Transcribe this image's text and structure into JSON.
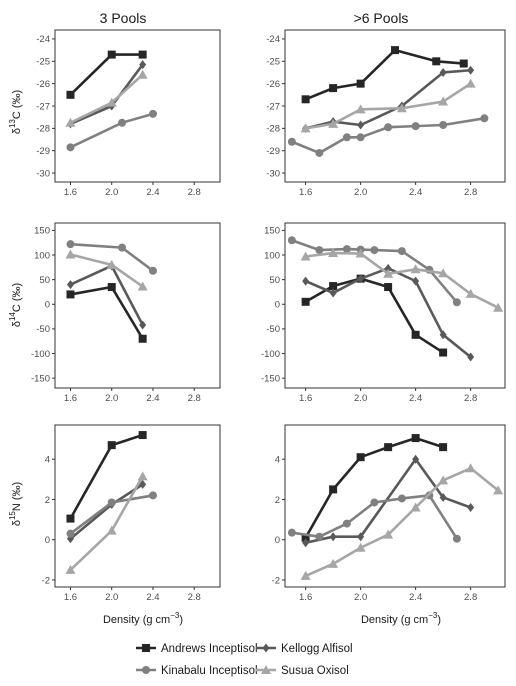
{
  "figure": {
    "columns": [
      "3 Pools",
      ">6 Pools"
    ],
    "xlabel": "Density (g cm",
    "xlabel_sup": "−3",
    "xlabel_end": ")",
    "rows": [
      {
        "ylabel_pre": "δ",
        "ylabel_sup": "13",
        "ylabel_post": "C (‰)"
      },
      {
        "ylabel_pre": "δ",
        "ylabel_sup": "14",
        "ylabel_post": "C (‰)"
      },
      {
        "ylabel_pre": "δ",
        "ylabel_sup": "15",
        "ylabel_post": "N (‰)"
      }
    ]
  },
  "legend": [
    {
      "label": "Andrews Inceptisol",
      "color": "#262626",
      "marker": "square"
    },
    {
      "label": "Kellogg Alfisol",
      "color": "#595959",
      "marker": "diamond"
    },
    {
      "label": "Kinabalu Inceptisol",
      "color": "#808080",
      "marker": "circle"
    },
    {
      "label": "Susua Oxisol",
      "color": "#a6a6a6",
      "marker": "triangle"
    }
  ],
  "chart_data": [
    {
      "type": "line",
      "panel": "d13C-3pools",
      "column": "3 Pools",
      "ylabel": "δ13C (‰)",
      "xlim": [
        1.45,
        3.05
      ],
      "xticks": [
        1.6,
        2.0,
        2.4,
        2.8
      ],
      "ylim": [
        -30.4,
        -23.6
      ],
      "yticks": [
        -30,
        -29,
        -28,
        -27,
        -26,
        -25,
        -24
      ],
      "series": [
        {
          "name": "Andrews Inceptisol",
          "x": [
            1.6,
            2.0,
            2.3
          ],
          "y": [
            -26.5,
            -24.7,
            -24.7
          ]
        },
        {
          "name": "Kellogg Alfisol",
          "x": [
            1.6,
            2.0,
            2.3
          ],
          "y": [
            -27.8,
            -27.0,
            -25.15
          ]
        },
        {
          "name": "Kinabalu Inceptisol",
          "x": [
            1.6,
            2.1,
            2.4
          ],
          "y": [
            -28.85,
            -27.75,
            -27.35
          ]
        },
        {
          "name": "Susua Oxisol",
          "x": [
            1.6,
            2.0,
            2.3
          ],
          "y": [
            -27.75,
            -26.85,
            -25.6
          ]
        }
      ]
    },
    {
      "type": "line",
      "panel": "d13C-6pools",
      "column": ">6 Pools",
      "ylabel": "δ13C (‰)",
      "xlim": [
        1.45,
        3.05
      ],
      "xticks": [
        1.6,
        2.0,
        2.4,
        2.8
      ],
      "ylim": [
        -30.4,
        -23.6
      ],
      "yticks": [
        -30,
        -29,
        -28,
        -27,
        -26,
        -25,
        -24
      ],
      "series": [
        {
          "name": "Andrews Inceptisol",
          "x": [
            1.6,
            1.8,
            2.0,
            2.25,
            2.55,
            2.75
          ],
          "y": [
            -26.7,
            -26.2,
            -26.0,
            -24.5,
            -25.0,
            -25.1
          ]
        },
        {
          "name": "Kellogg Alfisol",
          "x": [
            1.6,
            1.8,
            2.0,
            2.3,
            2.6,
            2.8
          ],
          "y": [
            -28.0,
            -27.7,
            -27.85,
            -27.0,
            -25.5,
            -25.4
          ]
        },
        {
          "name": "Kinabalu Inceptisol",
          "x": [
            1.5,
            1.7,
            1.9,
            2.0,
            2.2,
            2.4,
            2.6,
            2.9
          ],
          "y": [
            -28.6,
            -29.1,
            -28.4,
            -28.4,
            -27.95,
            -27.9,
            -27.85,
            -27.55
          ]
        },
        {
          "name": "Susua Oxisol",
          "x": [
            1.6,
            1.8,
            2.0,
            2.3,
            2.6,
            2.8
          ],
          "y": [
            -28.0,
            -27.8,
            -27.15,
            -27.1,
            -26.8,
            -26.0
          ]
        }
      ]
    },
    {
      "type": "line",
      "panel": "d14C-3pools",
      "column": "3 Pools",
      "ylabel": "δ14C (‰)",
      "xlim": [
        1.45,
        3.05
      ],
      "xticks": [
        1.6,
        2.0,
        2.4,
        2.8
      ],
      "ylim": [
        -170,
        165
      ],
      "yticks": [
        -150,
        -100,
        -50,
        0,
        50,
        100,
        150
      ],
      "series": [
        {
          "name": "Andrews Inceptisol",
          "x": [
            1.6,
            2.0,
            2.3
          ],
          "y": [
            20,
            35,
            -70
          ]
        },
        {
          "name": "Kellogg Alfisol",
          "x": [
            1.6,
            2.0,
            2.3
          ],
          "y": [
            40,
            78,
            -42
          ]
        },
        {
          "name": "Kinabalu Inceptisol",
          "x": [
            1.6,
            2.1,
            2.4
          ],
          "y": [
            122,
            115,
            68
          ]
        },
        {
          "name": "Susua Oxisol",
          "x": [
            1.6,
            2.0,
            2.3
          ],
          "y": [
            101,
            80,
            36
          ]
        }
      ]
    },
    {
      "type": "line",
      "panel": "d14C-6pools",
      "column": ">6 Pools",
      "ylabel": "δ14C (‰)",
      "xlim": [
        1.45,
        3.05
      ],
      "xticks": [
        1.6,
        2.0,
        2.4,
        2.8
      ],
      "ylim": [
        -170,
        165
      ],
      "yticks": [
        -150,
        -100,
        -50,
        0,
        50,
        100,
        150
      ],
      "series": [
        {
          "name": "Andrews Inceptisol",
          "x": [
            1.6,
            1.8,
            2.0,
            2.2,
            2.4,
            2.6
          ],
          "y": [
            5,
            37,
            52,
            35,
            -62,
            -98
          ]
        },
        {
          "name": "Kellogg Alfisol",
          "x": [
            1.6,
            1.8,
            2.0,
            2.2,
            2.4,
            2.6,
            2.8
          ],
          "y": [
            47,
            23,
            52,
            73,
            47,
            -62,
            -107
          ]
        },
        {
          "name": "Kinabalu Inceptisol",
          "x": [
            1.5,
            1.7,
            1.9,
            2.0,
            2.1,
            2.3,
            2.5,
            2.7
          ],
          "y": [
            130,
            110,
            112,
            111,
            110,
            108,
            70,
            4
          ]
        },
        {
          "name": "Susua Oxisol",
          "x": [
            1.6,
            1.8,
            2.0,
            2.2,
            2.4,
            2.6,
            2.8,
            3.0
          ],
          "y": [
            97,
            104,
            103,
            62,
            71,
            63,
            21,
            -7
          ]
        }
      ]
    },
    {
      "type": "line",
      "panel": "d15N-3pools",
      "column": "3 Pools",
      "ylabel": "δ15N (‰)",
      "xlim": [
        1.45,
        3.05
      ],
      "xticks": [
        1.6,
        2.0,
        2.4,
        2.8
      ],
      "ylim": [
        -2.35,
        5.7
      ],
      "yticks": [
        -2,
        0,
        2,
        4
      ],
      "series": [
        {
          "name": "Andrews Inceptisol",
          "x": [
            1.6,
            2.0,
            2.3
          ],
          "y": [
            1.05,
            4.7,
            5.2
          ]
        },
        {
          "name": "Kellogg Alfisol",
          "x": [
            1.6,
            2.0,
            2.3
          ],
          "y": [
            0.05,
            1.75,
            2.75
          ]
        },
        {
          "name": "Kinabalu Inceptisol",
          "x": [
            1.6,
            2.0,
            2.4
          ],
          "y": [
            0.3,
            1.85,
            2.2
          ]
        },
        {
          "name": "Susua Oxisol",
          "x": [
            1.6,
            2.0,
            2.3
          ],
          "y": [
            -1.5,
            0.45,
            3.15
          ]
        }
      ]
    },
    {
      "type": "line",
      "panel": "d15N-6pools",
      "column": ">6 Pools",
      "ylabel": "δ15N (‰)",
      "xlim": [
        1.45,
        3.05
      ],
      "xticks": [
        1.6,
        2.0,
        2.4,
        2.8
      ],
      "ylim": [
        -2.35,
        5.7
      ],
      "yticks": [
        -2,
        0,
        2,
        4
      ],
      "series": [
        {
          "name": "Andrews Inceptisol",
          "x": [
            1.6,
            1.8,
            2.0,
            2.2,
            2.4,
            2.6
          ],
          "y": [
            0.1,
            2.5,
            4.1,
            4.6,
            5.05,
            4.6
          ]
        },
        {
          "name": "Kellogg Alfisol",
          "x": [
            1.6,
            1.8,
            2.0,
            2.4,
            2.6,
            2.8
          ],
          "y": [
            -0.15,
            0.15,
            0.15,
            4.0,
            2.1,
            1.6
          ]
        },
        {
          "name": "Kinabalu Inceptisol",
          "x": [
            1.5,
            1.7,
            1.9,
            2.1,
            2.3,
            2.5,
            2.7
          ],
          "y": [
            0.35,
            0.15,
            0.8,
            1.85,
            2.05,
            2.2,
            0.05
          ]
        },
        {
          "name": "Susua Oxisol",
          "x": [
            1.6,
            1.8,
            2.0,
            2.2,
            2.4,
            2.6,
            2.8,
            3.0
          ],
          "y": [
            -1.8,
            -1.2,
            -0.4,
            0.25,
            1.6,
            2.95,
            3.55,
            2.45
          ]
        }
      ]
    }
  ]
}
